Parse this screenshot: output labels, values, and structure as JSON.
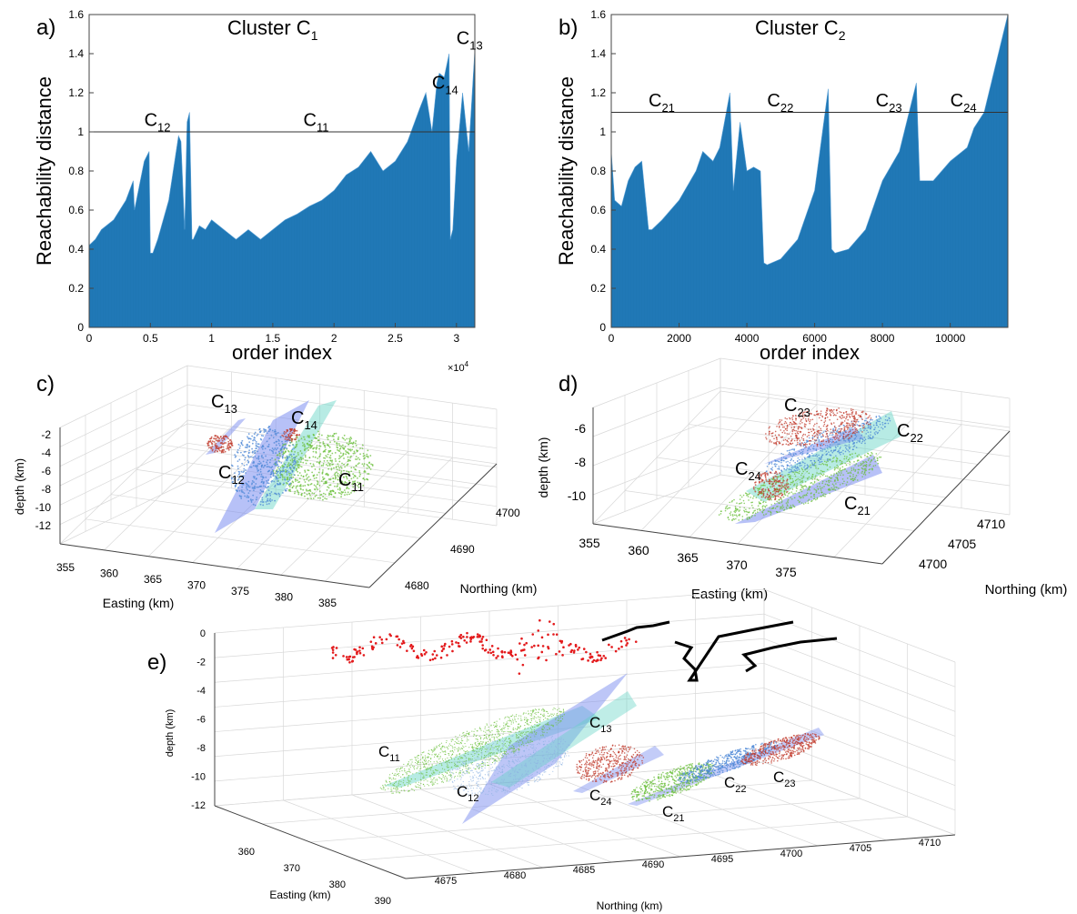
{
  "panel_labels": {
    "a": "a)",
    "b": "b)",
    "c": "c)",
    "d": "d)",
    "e": "e)"
  },
  "colors": {
    "bar": "#1f77b4",
    "bar_edge": "#5aa0d6",
    "green": "#6abf3a",
    "blue": "#4a86d6",
    "red": "#c0392b",
    "teal_plane": "#5fd3c4",
    "blue_plane": "#7b8ef0",
    "trace": "#000000",
    "red_trace": "#e31a1c",
    "grid": "#d8d8d8",
    "axis": "#444444"
  },
  "chart_data": [
    {
      "panel": "a",
      "type": "area",
      "title_main": "Cluster C",
      "title_sub": "1",
      "xlabel": "order index",
      "ylabel": "Reachability distance",
      "x_multiplier": "×10",
      "x_multiplier_exp": "4",
      "xlim": [
        0,
        31500
      ],
      "ylim": [
        0,
        1.6
      ],
      "xticks": [
        0,
        5000,
        10000,
        15000,
        20000,
        25000,
        30000
      ],
      "xtick_labels": [
        "0",
        "0.5",
        "1",
        "1.5",
        "2",
        "2.5",
        "3"
      ],
      "yticks": [
        0,
        0.2,
        0.4,
        0.6,
        0.8,
        1,
        1.2,
        1.4,
        1.6
      ],
      "ytick_labels": [
        "0",
        "0.2",
        "0.4",
        "0.6",
        "0.8",
        "1",
        "1.2",
        "1.4",
        "1.6"
      ],
      "threshold": 1.0,
      "x": [
        0,
        500,
        1000,
        2000,
        3000,
        3600,
        3700,
        4500,
        4900,
        5000,
        5200,
        5600,
        6500,
        7300,
        7500,
        7800,
        8000,
        8200,
        8400,
        8500,
        9000,
        9500,
        10000,
        11000,
        12000,
        13000,
        14000,
        15000,
        16000,
        17000,
        18000,
        19000,
        20000,
        21000,
        22000,
        23000,
        24000,
        25000,
        26000,
        27000,
        27500,
        28000,
        28400,
        28600,
        29000,
        29400,
        29500,
        29700,
        30000,
        30500,
        31000,
        31500
      ],
      "values": [
        0.42,
        0.45,
        0.5,
        0.55,
        0.65,
        0.75,
        0.6,
        0.85,
        0.9,
        0.38,
        0.38,
        0.45,
        0.65,
        0.98,
        0.95,
        0.5,
        1.05,
        1.1,
        0.45,
        0.45,
        0.52,
        0.5,
        0.55,
        0.5,
        0.45,
        0.5,
        0.45,
        0.5,
        0.55,
        0.58,
        0.62,
        0.65,
        0.7,
        0.78,
        0.82,
        0.9,
        0.8,
        0.85,
        0.95,
        1.12,
        1.2,
        1.0,
        1.25,
        1.3,
        1.28,
        1.4,
        0.45,
        0.5,
        0.85,
        1.2,
        0.9,
        1.42
      ],
      "labels": [
        {
          "main": "C",
          "sub": "12",
          "x": 4500,
          "y": 1.03
        },
        {
          "main": "C",
          "sub": "11",
          "x": 17500,
          "y": 1.03
        },
        {
          "main": "C",
          "sub": "14",
          "x": 28000,
          "y": 1.22
        },
        {
          "main": "C",
          "sub": "13",
          "x": 30000,
          "y": 1.45
        }
      ]
    },
    {
      "panel": "b",
      "type": "area",
      "title_main": "Cluster C",
      "title_sub": "2",
      "xlabel": "order index",
      "ylabel": "Reachability distance",
      "xlim": [
        0,
        11700
      ],
      "ylim": [
        0,
        1.6
      ],
      "xticks": [
        0,
        2000,
        4000,
        6000,
        8000,
        10000
      ],
      "xtick_labels": [
        "0",
        "2000",
        "4000",
        "6000",
        "8000",
        "10000"
      ],
      "yticks": [
        0,
        0.2,
        0.4,
        0.6,
        0.8,
        1,
        1.2,
        1.4,
        1.6
      ],
      "ytick_labels": [
        "0",
        "0.2",
        "0.4",
        "0.6",
        "0.8",
        "1",
        "1.2",
        "1.4",
        "1.6"
      ],
      "threshold": 1.1,
      "x": [
        0,
        100,
        300,
        500,
        700,
        900,
        1100,
        1200,
        1500,
        2000,
        2500,
        2700,
        3000,
        3200,
        3500,
        3600,
        3800,
        4000,
        4200,
        4400,
        4500,
        4600,
        5000,
        5500,
        6000,
        6400,
        6500,
        6600,
        7000,
        7500,
        8000,
        8500,
        9000,
        9100,
        9500,
        10000,
        10500,
        10700,
        11000,
        11700
      ],
      "values": [
        0.9,
        0.65,
        0.62,
        0.75,
        0.82,
        0.85,
        0.5,
        0.5,
        0.55,
        0.65,
        0.8,
        0.9,
        0.85,
        0.92,
        1.2,
        0.7,
        1.05,
        0.8,
        0.82,
        0.8,
        0.33,
        0.32,
        0.35,
        0.45,
        0.7,
        1.22,
        0.4,
        0.38,
        0.4,
        0.5,
        0.75,
        0.9,
        1.25,
        0.75,
        0.75,
        0.85,
        0.92,
        1.02,
        1.1,
        1.6
      ],
      "labels": [
        {
          "main": "C",
          "sub": "21",
          "x": 1100,
          "y": 1.13
        },
        {
          "main": "C",
          "sub": "22",
          "x": 4600,
          "y": 1.13
        },
        {
          "main": "C",
          "sub": "23",
          "x": 7800,
          "y": 1.13
        },
        {
          "main": "C",
          "sub": "24",
          "x": 10000,
          "y": 1.13
        }
      ]
    },
    {
      "panel": "c",
      "type": "scatter",
      "zlabel": "depth (km)",
      "xlabel": "Easting (km)",
      "ylabel": "Northing (km)",
      "ztick_labels": [
        "-2",
        "-4",
        "-6",
        "-8",
        "-10",
        "-12"
      ],
      "xtick_labels": [
        "355",
        "360",
        "365",
        "370",
        "375",
        "380",
        "385"
      ],
      "ytick_labels": [
        "4680",
        "4690",
        "4700"
      ],
      "series": [
        {
          "name": "C11",
          "color": "green"
        },
        {
          "name": "C12",
          "color": "blue"
        },
        {
          "name": "C13",
          "color": "red"
        },
        {
          "name": "C14",
          "color": "red"
        }
      ],
      "labels": [
        {
          "main": "C",
          "sub": "13"
        },
        {
          "main": "C",
          "sub": "14"
        },
        {
          "main": "C",
          "sub": "12"
        },
        {
          "main": "C",
          "sub": "11"
        }
      ]
    },
    {
      "panel": "d",
      "type": "scatter",
      "zlabel": "depth (km)",
      "xlabel": "Easting (km)",
      "ylabel": "Northing (km)",
      "ztick_labels": [
        "-6",
        "-8",
        "-10"
      ],
      "xtick_labels": [
        "355",
        "360",
        "365",
        "370",
        "375"
      ],
      "ytick_labels": [
        "4700",
        "4705",
        "4710"
      ],
      "series": [
        {
          "name": "C21",
          "color": "green"
        },
        {
          "name": "C22",
          "color": "blue"
        },
        {
          "name": "C23",
          "color": "red"
        },
        {
          "name": "C24",
          "color": "red"
        }
      ],
      "labels": [
        {
          "main": "C",
          "sub": "23"
        },
        {
          "main": "C",
          "sub": "22"
        },
        {
          "main": "C",
          "sub": "24"
        },
        {
          "main": "C",
          "sub": "21"
        }
      ]
    },
    {
      "panel": "e",
      "type": "scatter",
      "zlabel": "depth (km)",
      "xlabel": "Easting (km)",
      "ylabel": "Northing (km)",
      "ztick_labels": [
        "0",
        "-2",
        "-4",
        "-6",
        "-8",
        "-10",
        "-12"
      ],
      "xtick_labels": [
        "360",
        "370",
        "380",
        "390"
      ],
      "ytick_labels": [
        "4675",
        "4680",
        "4685",
        "4690",
        "4695",
        "4700",
        "4705",
        "4710"
      ],
      "labels": [
        {
          "main": "C",
          "sub": "11"
        },
        {
          "main": "C",
          "sub": "12"
        },
        {
          "main": "C",
          "sub": "13"
        },
        {
          "main": "C",
          "sub": "24"
        },
        {
          "main": "C",
          "sub": "21"
        },
        {
          "main": "C",
          "sub": "22"
        },
        {
          "main": "C",
          "sub": "23"
        }
      ]
    }
  ]
}
